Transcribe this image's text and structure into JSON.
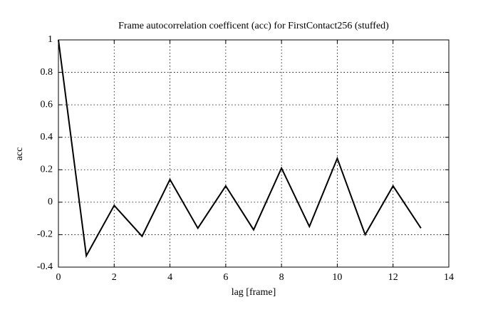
{
  "chart_data": {
    "type": "line",
    "title": "Frame autocorrelation coefficent (acc) for FirstContact256 (stuffed)",
    "x_label": "lag [frame]",
    "y_label": "acc",
    "x": [
      0,
      1,
      2,
      3,
      4,
      5,
      6,
      7,
      8,
      9,
      10,
      11,
      12,
      13
    ],
    "series": [
      {
        "color": "#000000",
        "values": [
          1,
          -0.33,
          -0.02,
          -0.21,
          0.14,
          -0.16,
          0.1,
          -0.17,
          0.21,
          -0.15,
          0.27,
          -0.2,
          0.1,
          -0.16
        ]
      }
    ],
    "xlim": [
      0,
      14
    ],
    "xticks": [
      0,
      2,
      4,
      6,
      8,
      10,
      12,
      14
    ],
    "ylim": [
      -0.4,
      1
    ],
    "yticks": [
      -0.4,
      -0.2,
      0,
      0.2,
      0.4,
      0.6,
      0.8,
      1
    ],
    "grid": true
  }
}
